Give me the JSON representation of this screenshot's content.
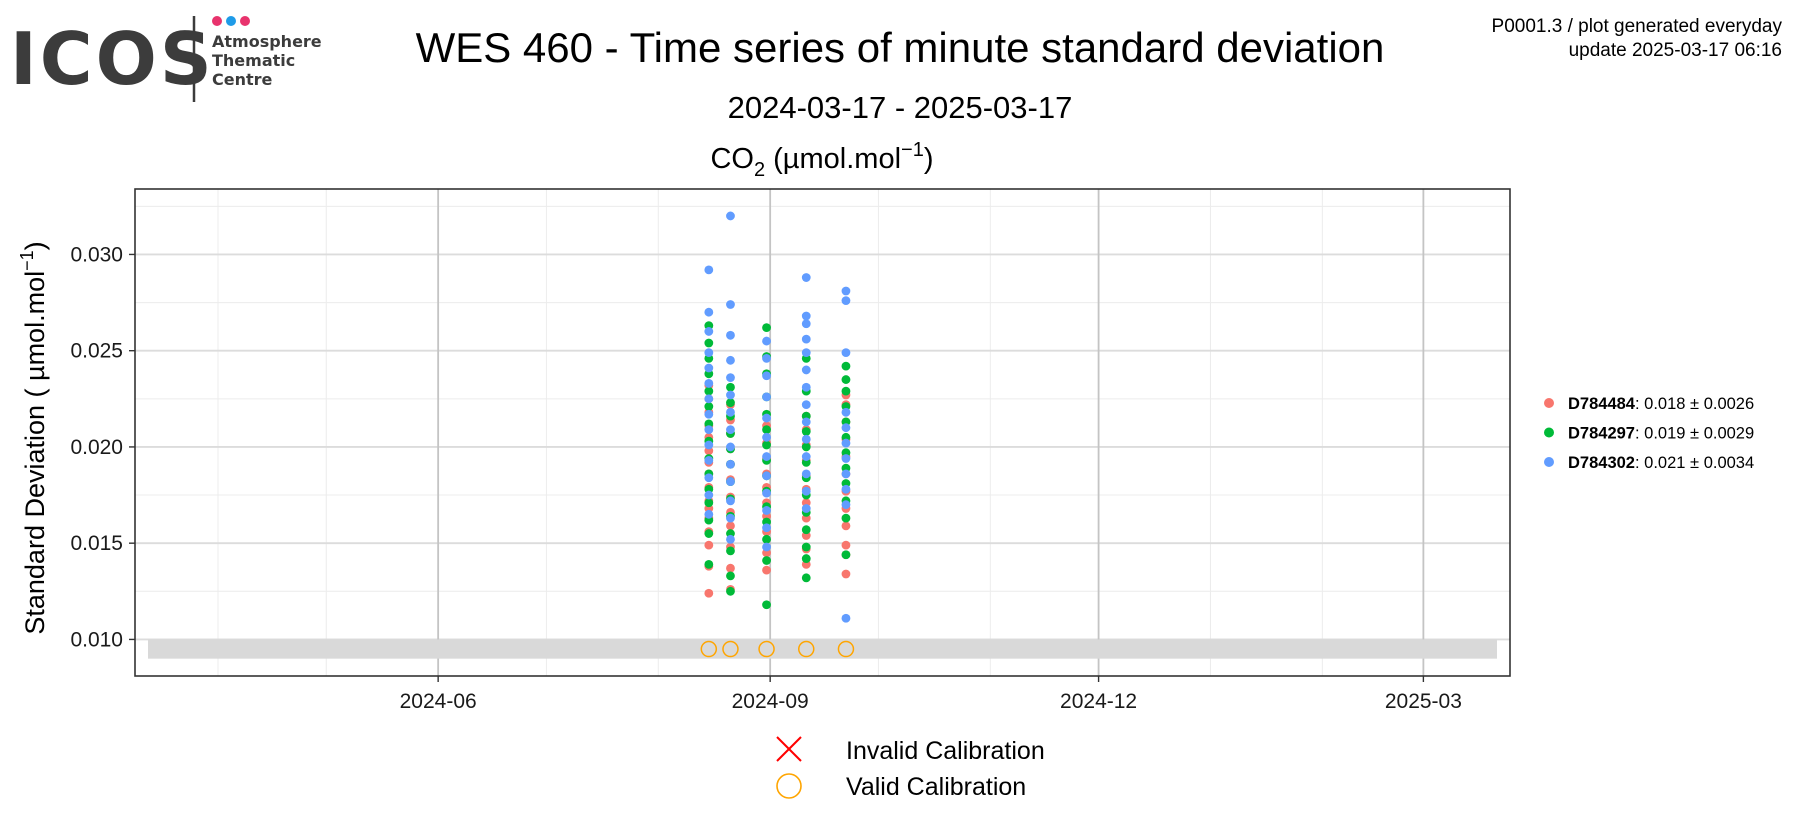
{
  "logo": {
    "name": "ICOS",
    "subtitle_lines": [
      "Atmosphere",
      "Thematic",
      "Centre"
    ],
    "dot_colors": [
      "#e8336d",
      "#1e9be8",
      "#e8336d"
    ]
  },
  "header": {
    "title": "WES 460 - Time series of minute standard deviation",
    "date_range": "2024-03-17 - 2025-03-17",
    "info_line1": "P0001.3 / plot generated everyday",
    "info_line2": "update  2025-03-17 06:16"
  },
  "chart_data": {
    "type": "scatter",
    "panel_title": {
      "species": "CO",
      "subscript": "2",
      "unit_open": " (µmol.mol",
      "superscript": "−1",
      "unit_close": ")"
    },
    "ylabel": {
      "text": "Standard Deviation ( µmol.mol",
      "superscript": "−1",
      "close": ")"
    },
    "x_ticks": [
      "2024-06-01",
      "2024-09-01",
      "2024-12-01",
      "2025-03-01"
    ],
    "x_tick_labels": [
      "2024-06",
      "2024-09",
      "2024-12",
      "2025-03"
    ],
    "xlim": [
      "2024-03-09",
      "2025-03-25"
    ],
    "ylim": [
      0.0081,
      0.0334
    ],
    "y_ticks": [
      0.01,
      0.015,
      0.02,
      0.025,
      0.03
    ],
    "y_tick_labels": [
      "0.010",
      "0.015",
      "0.020",
      "0.025",
      "0.030"
    ],
    "grid": true,
    "shaded_band": {
      "y_from": 0.009,
      "y_to": 0.01,
      "color": "#d9d9d9"
    },
    "legend_position": "right",
    "series": [
      {
        "name": "D784484",
        "legend_value": ": 0.018",
        "legend_pm": " ± ",
        "legend_sd": "0.0026",
        "color": "#f8766d",
        "points": [
          [
            "2024-08-15",
            0.0124
          ],
          [
            "2024-08-15",
            0.0138
          ],
          [
            "2024-08-15",
            0.0149
          ],
          [
            "2024-08-15",
            0.0156
          ],
          [
            "2024-08-15",
            0.0163
          ],
          [
            "2024-08-15",
            0.0168
          ],
          [
            "2024-08-15",
            0.0172
          ],
          [
            "2024-08-15",
            0.0179
          ],
          [
            "2024-08-15",
            0.0186
          ],
          [
            "2024-08-15",
            0.0192
          ],
          [
            "2024-08-15",
            0.0198
          ],
          [
            "2024-08-15",
            0.0205
          ],
          [
            "2024-08-15",
            0.0211
          ],
          [
            "2024-08-15",
            0.0218
          ],
          [
            "2024-08-15",
            0.0225
          ],
          [
            "2024-08-15",
            0.0232
          ],
          [
            "2024-08-21",
            0.0126
          ],
          [
            "2024-08-21",
            0.0137
          ],
          [
            "2024-08-21",
            0.0148
          ],
          [
            "2024-08-21",
            0.0159
          ],
          [
            "2024-08-21",
            0.0166
          ],
          [
            "2024-08-21",
            0.0174
          ],
          [
            "2024-08-21",
            0.0183
          ],
          [
            "2024-08-21",
            0.0191
          ],
          [
            "2024-08-21",
            0.0199
          ],
          [
            "2024-08-21",
            0.0207
          ],
          [
            "2024-08-21",
            0.0214
          ],
          [
            "2024-08-21",
            0.0222
          ],
          [
            "2024-08-31",
            0.0136
          ],
          [
            "2024-08-31",
            0.0145
          ],
          [
            "2024-08-31",
            0.0156
          ],
          [
            "2024-08-31",
            0.0164
          ],
          [
            "2024-08-31",
            0.0171
          ],
          [
            "2024-08-31",
            0.0179
          ],
          [
            "2024-08-31",
            0.0186
          ],
          [
            "2024-08-31",
            0.0194
          ],
          [
            "2024-08-31",
            0.0202
          ],
          [
            "2024-08-31",
            0.0211
          ],
          [
            "2024-09-11",
            0.0139
          ],
          [
            "2024-09-11",
            0.0147
          ],
          [
            "2024-09-11",
            0.0154
          ],
          [
            "2024-09-11",
            0.0163
          ],
          [
            "2024-09-11",
            0.0171
          ],
          [
            "2024-09-11",
            0.0178
          ],
          [
            "2024-09-11",
            0.0185
          ],
          [
            "2024-09-11",
            0.0193
          ],
          [
            "2024-09-11",
            0.0201
          ],
          [
            "2024-09-11",
            0.0209
          ],
          [
            "2024-09-11",
            0.0216
          ],
          [
            "2024-09-22",
            0.0134
          ],
          [
            "2024-09-22",
            0.0144
          ],
          [
            "2024-09-22",
            0.0149
          ],
          [
            "2024-09-22",
            0.0159
          ],
          [
            "2024-09-22",
            0.0168
          ],
          [
            "2024-09-22",
            0.0177
          ],
          [
            "2024-09-22",
            0.0186
          ],
          [
            "2024-09-22",
            0.0195
          ],
          [
            "2024-09-22",
            0.0204
          ],
          [
            "2024-09-22",
            0.0213
          ],
          [
            "2024-09-22",
            0.0222
          ],
          [
            "2024-09-22",
            0.0227
          ]
        ]
      },
      {
        "name": "D784297",
        "legend_value": ": 0.019",
        "legend_pm": " ± ",
        "legend_sd": "0.0029",
        "color": "#00ba38",
        "points": [
          [
            "2024-08-15",
            0.0139
          ],
          [
            "2024-08-15",
            0.0155
          ],
          [
            "2024-08-15",
            0.0162
          ],
          [
            "2024-08-15",
            0.0171
          ],
          [
            "2024-08-15",
            0.0178
          ],
          [
            "2024-08-15",
            0.0186
          ],
          [
            "2024-08-15",
            0.0194
          ],
          [
            "2024-08-15",
            0.0203
          ],
          [
            "2024-08-15",
            0.0212
          ],
          [
            "2024-08-15",
            0.0221
          ],
          [
            "2024-08-15",
            0.0229
          ],
          [
            "2024-08-15",
            0.0238
          ],
          [
            "2024-08-15",
            0.0246
          ],
          [
            "2024-08-15",
            0.0254
          ],
          [
            "2024-08-15",
            0.0263
          ],
          [
            "2024-08-21",
            0.0125
          ],
          [
            "2024-08-21",
            0.0133
          ],
          [
            "2024-08-21",
            0.0146
          ],
          [
            "2024-08-21",
            0.0155
          ],
          [
            "2024-08-21",
            0.0164
          ],
          [
            "2024-08-21",
            0.0173
          ],
          [
            "2024-08-21",
            0.0182
          ],
          [
            "2024-08-21",
            0.0191
          ],
          [
            "2024-08-21",
            0.0199
          ],
          [
            "2024-08-21",
            0.0207
          ],
          [
            "2024-08-21",
            0.0216
          ],
          [
            "2024-08-21",
            0.0223
          ],
          [
            "2024-08-21",
            0.0231
          ],
          [
            "2024-08-31",
            0.0118
          ],
          [
            "2024-08-31",
            0.0141
          ],
          [
            "2024-08-31",
            0.0152
          ],
          [
            "2024-08-31",
            0.0161
          ],
          [
            "2024-08-31",
            0.0169
          ],
          [
            "2024-08-31",
            0.0177
          ],
          [
            "2024-08-31",
            0.0185
          ],
          [
            "2024-08-31",
            0.0193
          ],
          [
            "2024-08-31",
            0.0201
          ],
          [
            "2024-08-31",
            0.0209
          ],
          [
            "2024-08-31",
            0.0217
          ],
          [
            "2024-08-31",
            0.0226
          ],
          [
            "2024-08-31",
            0.0238
          ],
          [
            "2024-08-31",
            0.0247
          ],
          [
            "2024-08-31",
            0.0262
          ],
          [
            "2024-09-11",
            0.0132
          ],
          [
            "2024-09-11",
            0.0142
          ],
          [
            "2024-09-11",
            0.0148
          ],
          [
            "2024-09-11",
            0.0157
          ],
          [
            "2024-09-11",
            0.0166
          ],
          [
            "2024-09-11",
            0.0175
          ],
          [
            "2024-09-11",
            0.0184
          ],
          [
            "2024-09-11",
            0.0192
          ],
          [
            "2024-09-11",
            0.02
          ],
          [
            "2024-09-11",
            0.0208
          ],
          [
            "2024-09-11",
            0.0216
          ],
          [
            "2024-09-11",
            0.0229
          ],
          [
            "2024-09-11",
            0.0246
          ],
          [
            "2024-09-22",
            0.0144
          ],
          [
            "2024-09-22",
            0.0163
          ],
          [
            "2024-09-22",
            0.0172
          ],
          [
            "2024-09-22",
            0.0181
          ],
          [
            "2024-09-22",
            0.0189
          ],
          [
            "2024-09-22",
            0.0197
          ],
          [
            "2024-09-22",
            0.0205
          ],
          [
            "2024-09-22",
            0.0213
          ],
          [
            "2024-09-22",
            0.0221
          ],
          [
            "2024-09-22",
            0.0229
          ],
          [
            "2024-09-22",
            0.0235
          ],
          [
            "2024-09-22",
            0.0242
          ]
        ]
      },
      {
        "name": "D784302",
        "legend_value": ": 0.021",
        "legend_pm": " ± ",
        "legend_sd": "0.0034",
        "color": "#619cff",
        "points": [
          [
            "2024-08-15",
            0.0165
          ],
          [
            "2024-08-15",
            0.0175
          ],
          [
            "2024-08-15",
            0.0184
          ],
          [
            "2024-08-15",
            0.0193
          ],
          [
            "2024-08-15",
            0.0201
          ],
          [
            "2024-08-15",
            0.0209
          ],
          [
            "2024-08-15",
            0.0217
          ],
          [
            "2024-08-15",
            0.0225
          ],
          [
            "2024-08-15",
            0.0233
          ],
          [
            "2024-08-15",
            0.0241
          ],
          [
            "2024-08-15",
            0.0249
          ],
          [
            "2024-08-15",
            0.026
          ],
          [
            "2024-08-15",
            0.027
          ],
          [
            "2024-08-15",
            0.0292
          ],
          [
            "2024-08-21",
            0.0152
          ],
          [
            "2024-08-21",
            0.0163
          ],
          [
            "2024-08-21",
            0.0172
          ],
          [
            "2024-08-21",
            0.0182
          ],
          [
            "2024-08-21",
            0.0191
          ],
          [
            "2024-08-21",
            0.02
          ],
          [
            "2024-08-21",
            0.0209
          ],
          [
            "2024-08-21",
            0.0218
          ],
          [
            "2024-08-21",
            0.0227
          ],
          [
            "2024-08-21",
            0.0236
          ],
          [
            "2024-08-21",
            0.0245
          ],
          [
            "2024-08-21",
            0.0258
          ],
          [
            "2024-08-21",
            0.0274
          ],
          [
            "2024-08-21",
            0.032
          ],
          [
            "2024-08-31",
            0.0148
          ],
          [
            "2024-08-31",
            0.0158
          ],
          [
            "2024-08-31",
            0.0167
          ],
          [
            "2024-08-31",
            0.0176
          ],
          [
            "2024-08-31",
            0.0185
          ],
          [
            "2024-08-31",
            0.0195
          ],
          [
            "2024-08-31",
            0.0205
          ],
          [
            "2024-08-31",
            0.0215
          ],
          [
            "2024-08-31",
            0.0226
          ],
          [
            "2024-08-31",
            0.0237
          ],
          [
            "2024-08-31",
            0.0246
          ],
          [
            "2024-08-31",
            0.0255
          ],
          [
            "2024-09-11",
            0.0168
          ],
          [
            "2024-09-11",
            0.0177
          ],
          [
            "2024-09-11",
            0.0186
          ],
          [
            "2024-09-11",
            0.0195
          ],
          [
            "2024-09-11",
            0.0204
          ],
          [
            "2024-09-11",
            0.0213
          ],
          [
            "2024-09-11",
            0.0222
          ],
          [
            "2024-09-11",
            0.0231
          ],
          [
            "2024-09-11",
            0.024
          ],
          [
            "2024-09-11",
            0.0249
          ],
          [
            "2024-09-11",
            0.0256
          ],
          [
            "2024-09-11",
            0.0264
          ],
          [
            "2024-09-11",
            0.0268
          ],
          [
            "2024-09-11",
            0.0288
          ],
          [
            "2024-09-22",
            0.0111
          ],
          [
            "2024-09-22",
            0.017
          ],
          [
            "2024-09-22",
            0.0178
          ],
          [
            "2024-09-22",
            0.0186
          ],
          [
            "2024-09-22",
            0.0194
          ],
          [
            "2024-09-22",
            0.0202
          ],
          [
            "2024-09-22",
            0.021
          ],
          [
            "2024-09-22",
            0.0218
          ],
          [
            "2024-09-22",
            0.0249
          ],
          [
            "2024-09-22",
            0.0276
          ],
          [
            "2024-09-22",
            0.0281
          ]
        ]
      }
    ],
    "calibrations": {
      "valid_dates": [
        "2024-08-15",
        "2024-08-21",
        "2024-08-31",
        "2024-09-11",
        "2024-09-22"
      ],
      "marker_y": 0.0095,
      "valid_color": "#ffa500",
      "invalid_color": "#ff0000",
      "legend": [
        {
          "symbol": "cross",
          "label": "Invalid Calibration"
        },
        {
          "symbol": "circle",
          "label": "Valid Calibration"
        }
      ]
    }
  }
}
